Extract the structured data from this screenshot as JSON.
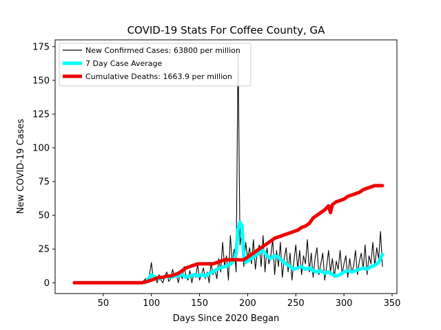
{
  "chart_data": {
    "type": "line",
    "title": "COVID-19 Stats For Coffee County, GA",
    "xlabel": "Days Since 2020 Began",
    "ylabel": "New COVID-19 Cases",
    "xlim": [
      0,
      355
    ],
    "ylim": [
      -8,
      180
    ],
    "xticks": [
      50,
      100,
      150,
      200,
      250,
      300,
      350
    ],
    "yticks": [
      0,
      25,
      50,
      75,
      100,
      125,
      150,
      175
    ],
    "legend_position": "top-left",
    "series": [
      {
        "name": "New Confirmed Cases: 63800 per million",
        "color": "#000000",
        "style": "thin",
        "x": [
          20,
          60,
          90,
          94,
          96,
          98,
          100,
          102,
          104,
          106,
          108,
          110,
          112,
          114,
          116,
          118,
          120,
          122,
          124,
          126,
          128,
          130,
          132,
          134,
          136,
          138,
          140,
          142,
          144,
          146,
          148,
          150,
          152,
          154,
          156,
          158,
          160,
          162,
          164,
          166,
          168,
          170,
          172,
          174,
          176,
          178,
          180,
          182,
          184,
          186,
          188,
          190,
          192,
          194,
          196,
          198,
          200,
          202,
          204,
          206,
          208,
          210,
          212,
          214,
          216,
          218,
          220,
          222,
          224,
          226,
          228,
          230,
          232,
          234,
          236,
          238,
          240,
          242,
          244,
          246,
          248,
          250,
          252,
          254,
          256,
          258,
          260,
          262,
          264,
          266,
          268,
          270,
          272,
          274,
          276,
          278,
          280,
          282,
          284,
          286,
          288,
          290,
          292,
          294,
          296,
          298,
          300,
          302,
          304,
          306,
          308,
          310,
          312,
          314,
          316,
          318,
          320,
          322,
          324,
          326,
          328,
          330,
          332,
          334,
          336,
          338,
          340
        ],
        "y": [
          0,
          0,
          0,
          3,
          0,
          6,
          15,
          2,
          4,
          0,
          6,
          2,
          0,
          5,
          8,
          1,
          3,
          10,
          4,
          6,
          0,
          8,
          3,
          12,
          5,
          2,
          9,
          0,
          7,
          4,
          14,
          2,
          6,
          11,
          3,
          8,
          0,
          15,
          6,
          10,
          3,
          18,
          8,
          30,
          12,
          20,
          2,
          35,
          15,
          25,
          8,
          172,
          28,
          38,
          12,
          30,
          18,
          26,
          14,
          32,
          10,
          22,
          28,
          12,
          35,
          8,
          26,
          14,
          20,
          32,
          6,
          24,
          12,
          30,
          4,
          18,
          26,
          8,
          22,
          2,
          16,
          28,
          10,
          24,
          6,
          20,
          14,
          32,
          8,
          22,
          4,
          18,
          26,
          6,
          14,
          22,
          2,
          12,
          24,
          8,
          18,
          4,
          16,
          10,
          24,
          6,
          14,
          20,
          4,
          18,
          8,
          12,
          24,
          6,
          16,
          22,
          10,
          28,
          6,
          20,
          14,
          30,
          12,
          26,
          18,
          38,
          12
        ],
        "values_note": ""
      },
      {
        "name": "7 Day Case Average",
        "color": "#00ffff",
        "style": "thick",
        "x": [
          93,
          96,
          100,
          104,
          108,
          112,
          116,
          120,
          124,
          128,
          132,
          136,
          140,
          144,
          148,
          152,
          156,
          160,
          164,
          168,
          172,
          176,
          180,
          184,
          186,
          188,
          190,
          192,
          194,
          196,
          198,
          200,
          204,
          208,
          212,
          216,
          220,
          224,
          228,
          232,
          236,
          240,
          244,
          248,
          252,
          256,
          260,
          264,
          268,
          272,
          276,
          280,
          284,
          288,
          292,
          296,
          300,
          304,
          308,
          312,
          316,
          320,
          324,
          328,
          332,
          336,
          340
        ],
        "y": [
          0,
          2,
          6,
          4,
          3,
          4,
          5,
          4,
          5,
          5,
          6,
          4,
          5,
          6,
          5,
          6,
          5,
          7,
          8,
          10,
          11,
          12,
          13,
          15,
          18,
          22,
          40,
          45,
          42,
          20,
          15,
          16,
          18,
          20,
          22,
          24,
          20,
          18,
          20,
          19,
          16,
          14,
          12,
          10,
          11,
          12,
          10,
          11,
          9,
          8,
          9,
          7,
          8,
          6,
          5,
          6,
          8,
          9,
          8,
          9,
          10,
          11,
          10,
          12,
          13,
          15,
          21
        ]
      },
      {
        "name": "Cumulative Deaths: 1663.9 per million",
        "color": "#ee0000",
        "style": "thick",
        "x": [
          20,
          60,
          90,
          96,
          100,
          104,
          108,
          112,
          116,
          120,
          124,
          128,
          132,
          136,
          140,
          144,
          148,
          152,
          156,
          160,
          164,
          168,
          172,
          176,
          180,
          184,
          188,
          192,
          196,
          200,
          204,
          208,
          212,
          216,
          220,
          224,
          228,
          232,
          236,
          240,
          244,
          248,
          252,
          256,
          260,
          264,
          268,
          272,
          276,
          280,
          284,
          286,
          288,
          290,
          292,
          296,
          300,
          304,
          308,
          312,
          316,
          320,
          324,
          328,
          332,
          336,
          340
        ],
        "y": [
          0,
          0,
          0,
          1,
          2,
          3,
          4,
          4,
          5,
          5,
          6,
          7,
          9,
          11,
          12,
          13,
          14,
          14,
          14,
          14,
          14,
          15,
          16,
          17,
          17,
          17,
          17,
          17,
          17,
          19,
          21,
          23,
          25,
          27,
          29,
          31,
          33,
          34,
          35,
          36,
          37,
          38,
          39,
          41,
          42,
          44,
          48,
          50,
          52,
          54,
          57,
          52,
          58,
          59,
          60,
          61,
          62,
          64,
          65,
          66,
          67,
          69,
          70,
          71,
          72,
          72,
          72
        ]
      }
    ]
  }
}
